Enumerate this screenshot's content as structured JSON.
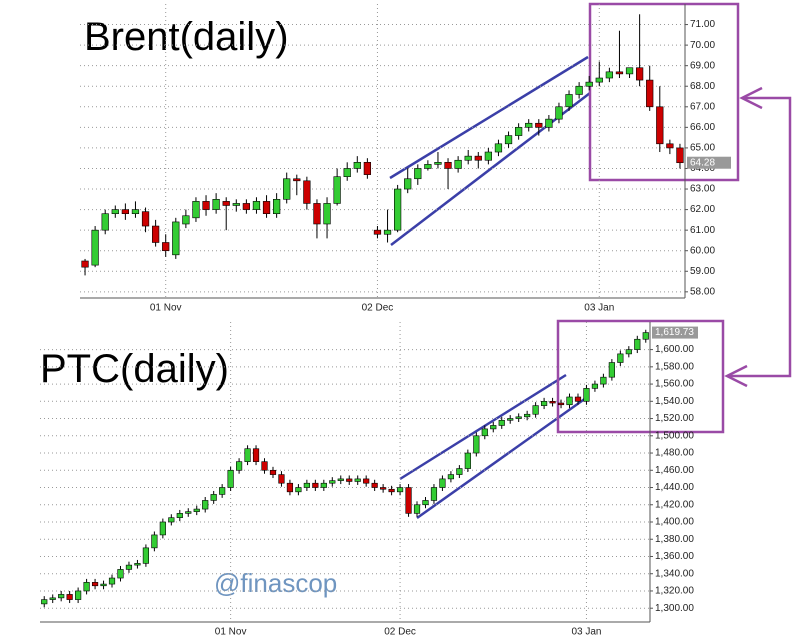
{
  "chart_data": [
    {
      "type": "candlestick",
      "title": "Brent(daily)",
      "categories": [
        null,
        null,
        null,
        null,
        null,
        null,
        null,
        null,
        "01 Nov",
        null,
        null,
        null,
        null,
        null,
        null,
        null,
        null,
        null,
        null,
        null,
        null,
        null,
        null,
        null,
        null,
        null,
        null,
        null,
        null,
        "02 Dec",
        null,
        null,
        null,
        null,
        null,
        null,
        null,
        null,
        null,
        null,
        null,
        null,
        null,
        null,
        null,
        null,
        null,
        null,
        null,
        null,
        null,
        "03 Jan",
        null,
        null,
        null,
        null,
        null,
        null,
        null,
        null
      ],
      "open": [
        59.5,
        59.3,
        61.0,
        61.8,
        62.0,
        61.8,
        61.9,
        61.2,
        60.4,
        59.8,
        61.3,
        61.6,
        62.4,
        62.0,
        62.4,
        62.2,
        62.3,
        62.0,
        62.4,
        61.8,
        62.5,
        63.5,
        63.4,
        62.3,
        61.3,
        62.3,
        63.6,
        64.0,
        64.3,
        61.0,
        60.8,
        61.0,
        63.0,
        63.5,
        64.0,
        64.2,
        64.3,
        64.0,
        64.4,
        64.6,
        64.4,
        64.8,
        65.2,
        65.6,
        66.0,
        66.2,
        66.0,
        66.4,
        67.0,
        67.6,
        68.0,
        68.2,
        68.4,
        68.7,
        68.6,
        68.9,
        68.3,
        67.0,
        65.2,
        65.0
      ],
      "high": [
        59.6,
        61.2,
        62.0,
        62.2,
        62.3,
        62.4,
        62.1,
        61.5,
        60.8,
        61.6,
        62.0,
        62.6,
        62.7,
        62.8,
        62.6,
        62.5,
        62.5,
        62.6,
        62.7,
        62.8,
        63.8,
        63.7,
        63.6,
        62.5,
        62.6,
        64.0,
        64.3,
        64.6,
        64.5,
        61.2,
        62.0,
        63.2,
        64.0,
        64.2,
        64.4,
        64.8,
        64.5,
        64.6,
        64.9,
        64.8,
        65.0,
        65.4,
        65.8,
        66.2,
        66.4,
        66.4,
        66.6,
        67.2,
        67.8,
        68.2,
        68.5,
        69.2,
        68.9,
        70.7,
        68.9,
        71.5,
        69.0,
        68.0,
        65.4,
        65.2
      ],
      "low": [
        58.8,
        59.2,
        60.8,
        61.6,
        61.5,
        61.6,
        60.9,
        60.2,
        59.7,
        59.6,
        61.1,
        61.4,
        61.7,
        61.8,
        61.0,
        61.9,
        61.8,
        61.8,
        61.6,
        61.6,
        62.3,
        62.7,
        62.0,
        60.6,
        60.6,
        62.2,
        63.4,
        63.8,
        63.5,
        60.6,
        60.4,
        60.9,
        62.8,
        63.2,
        63.9,
        64.0,
        63.0,
        63.8,
        64.2,
        64.0,
        64.2,
        64.6,
        65.0,
        65.4,
        65.8,
        65.6,
        65.8,
        66.2,
        66.8,
        67.4,
        67.8,
        68.0,
        68.2,
        68.4,
        68.4,
        68.0,
        66.8,
        64.8,
        64.7,
        64.0
      ],
      "close": [
        59.2,
        61.0,
        61.8,
        62.0,
        61.8,
        62.0,
        61.2,
        60.4,
        60.0,
        61.4,
        61.7,
        62.4,
        62.0,
        62.5,
        62.2,
        62.3,
        62.0,
        62.4,
        61.8,
        62.5,
        63.5,
        63.4,
        62.3,
        61.3,
        62.3,
        63.6,
        64.0,
        64.3,
        63.7,
        60.8,
        61.0,
        63.0,
        63.5,
        64.0,
        64.2,
        64.3,
        64.0,
        64.4,
        64.6,
        64.4,
        64.8,
        65.2,
        65.6,
        66.0,
        66.2,
        66.0,
        66.4,
        67.0,
        67.6,
        68.0,
        68.2,
        68.4,
        68.7,
        68.6,
        68.9,
        68.3,
        67.0,
        65.2,
        65.0,
        64.28
      ],
      "ylim": [
        57.7,
        72.0
      ],
      "yticks": [
        {
          "value": 58,
          "label": "58.00"
        },
        {
          "value": 59,
          "label": "59.00"
        },
        {
          "value": 60,
          "label": "60.00"
        },
        {
          "value": 61,
          "label": "61.00"
        },
        {
          "value": 62,
          "label": "62.00"
        },
        {
          "value": 63,
          "label": "63.00"
        },
        {
          "value": 64,
          "label": "64.00"
        },
        {
          "value": 65,
          "label": "65.00"
        },
        {
          "value": 66,
          "label": "66.00"
        },
        {
          "value": 67,
          "label": "67.00"
        },
        {
          "value": 68,
          "label": "68.00"
        },
        {
          "value": 69,
          "label": "69.00"
        },
        {
          "value": 70,
          "label": "70.00"
        },
        {
          "value": 71,
          "label": "71.00"
        }
      ],
      "up_color": "#33cc33",
      "down_color": "#cc0000",
      "grid": true
    },
    {
      "type": "candlestick",
      "title": "PTC(daily)",
      "annotation": "@finascop",
      "categories": [
        null,
        null,
        null,
        null,
        null,
        null,
        null,
        null,
        null,
        null,
        null,
        null,
        null,
        null,
        null,
        null,
        null,
        null,
        null,
        null,
        null,
        null,
        "01 Nov",
        null,
        null,
        null,
        null,
        null,
        null,
        null,
        null,
        null,
        null,
        null,
        null,
        null,
        null,
        null,
        null,
        null,
        null,
        null,
        "02 Dec",
        null,
        null,
        null,
        null,
        null,
        null,
        null,
        null,
        null,
        null,
        null,
        null,
        null,
        null,
        null,
        null,
        null,
        null,
        null,
        null,
        null,
        "03 Jan",
        null,
        null,
        null,
        null,
        null,
        null,
        null
      ],
      "open": [
        1305,
        1310,
        1312,
        1316,
        1310,
        1320,
        1330,
        1326,
        1328,
        1335,
        1345,
        1350,
        1352,
        1370,
        1385,
        1400,
        1405,
        1410,
        1412,
        1415,
        1425,
        1432,
        1440,
        1460,
        1470,
        1485,
        1470,
        1460,
        1455,
        1445,
        1435,
        1440,
        1445,
        1440,
        1445,
        1448,
        1450,
        1447,
        1450,
        1445,
        1440,
        1438,
        1435,
        1440,
        1410,
        1420,
        1425,
        1440,
        1450,
        1455,
        1462,
        1480,
        1500,
        1508,
        1512,
        1518,
        1520,
        1522,
        1525,
        1535,
        1540,
        1538,
        1536,
        1545,
        1540,
        1555,
        1560,
        1568,
        1585,
        1595,
        1600,
        1612
      ],
      "high": [
        1314,
        1316,
        1320,
        1320,
        1324,
        1334,
        1334,
        1332,
        1339,
        1349,
        1354,
        1356,
        1374,
        1389,
        1404,
        1409,
        1414,
        1416,
        1419,
        1429,
        1436,
        1444,
        1464,
        1474,
        1489,
        1489,
        1474,
        1464,
        1459,
        1449,
        1444,
        1449,
        1449,
        1449,
        1452,
        1454,
        1454,
        1454,
        1454,
        1449,
        1444,
        1442,
        1444,
        1444,
        1424,
        1429,
        1444,
        1454,
        1459,
        1466,
        1484,
        1504,
        1512,
        1516,
        1522,
        1524,
        1526,
        1529,
        1539,
        1544,
        1544,
        1542,
        1549,
        1549,
        1559,
        1564,
        1572,
        1589,
        1599,
        1604,
        1616,
        1623
      ],
      "low": [
        1301,
        1306,
        1308,
        1306,
        1306,
        1316,
        1322,
        1322,
        1324,
        1331,
        1341,
        1346,
        1348,
        1366,
        1381,
        1396,
        1401,
        1406,
        1408,
        1411,
        1421,
        1428,
        1436,
        1456,
        1466,
        1466,
        1456,
        1451,
        1441,
        1431,
        1431,
        1436,
        1436,
        1436,
        1441,
        1444,
        1443,
        1443,
        1441,
        1436,
        1434,
        1431,
        1431,
        1406,
        1406,
        1416,
        1421,
        1436,
        1446,
        1451,
        1458,
        1476,
        1496,
        1504,
        1508,
        1514,
        1516,
        1518,
        1521,
        1531,
        1534,
        1532,
        1532,
        1536,
        1536,
        1551,
        1556,
        1564,
        1581,
        1591,
        1596,
        1608
      ],
      "close": [
        1310,
        1312,
        1316,
        1310,
        1320,
        1330,
        1326,
        1328,
        1335,
        1345,
        1350,
        1352,
        1370,
        1385,
        1400,
        1405,
        1410,
        1412,
        1415,
        1425,
        1432,
        1440,
        1460,
        1470,
        1485,
        1470,
        1460,
        1455,
        1445,
        1435,
        1440,
        1445,
        1440,
        1445,
        1448,
        1450,
        1447,
        1450,
        1445,
        1440,
        1438,
        1435,
        1440,
        1410,
        1420,
        1425,
        1440,
        1450,
        1455,
        1462,
        1480,
        1500,
        1508,
        1512,
        1518,
        1520,
        1522,
        1525,
        1535,
        1540,
        1538,
        1536,
        1545,
        1540,
        1555,
        1560,
        1568,
        1585,
        1595,
        1600,
        1612,
        1619.73
      ],
      "value_labels": [
        null,
        null,
        null,
        null,
        null,
        null,
        null,
        null,
        null,
        null,
        null,
        null,
        null,
        null,
        null,
        null,
        null,
        null,
        null,
        null,
        null,
        null,
        null,
        null,
        null,
        null,
        null,
        null,
        null,
        null,
        null,
        null,
        null,
        null,
        null,
        null,
        null,
        null,
        null,
        null,
        null,
        null,
        null,
        null,
        null,
        null,
        null,
        null,
        null,
        null,
        null,
        null,
        null,
        null,
        null,
        null,
        null,
        null,
        null,
        null,
        null,
        null,
        null,
        null,
        null,
        null,
        null,
        null,
        null,
        null,
        null,
        "1,619.73"
      ],
      "ylim": [
        1284,
        1632
      ],
      "yticks": [
        {
          "value": 1300,
          "label": "1,300.00"
        },
        {
          "value": 1320,
          "label": "1,320.00"
        },
        {
          "value": 1340,
          "label": "1,340.00"
        },
        {
          "value": 1360,
          "label": "1,360.00"
        },
        {
          "value": 1380,
          "label": "1,380.00"
        },
        {
          "value": 1400,
          "label": "1,400.00"
        },
        {
          "value": 1420,
          "label": "1,420.00"
        },
        {
          "value": 1440,
          "label": "1,440.00"
        },
        {
          "value": 1460,
          "label": "1,460.00"
        },
        {
          "value": 1480,
          "label": "1,480.00"
        },
        {
          "value": 1500,
          "label": "1,500.00"
        },
        {
          "value": 1520,
          "label": "1,520.00"
        },
        {
          "value": 1540,
          "label": "1,540.00"
        },
        {
          "value": 1560,
          "label": "1,560.00"
        },
        {
          "value": 1580,
          "label": "1,580.00"
        },
        {
          "value": 1600,
          "label": "1,600.00"
        }
      ],
      "up_color": "#33cc33",
      "down_color": "#cc0000",
      "grid": true
    }
  ]
}
